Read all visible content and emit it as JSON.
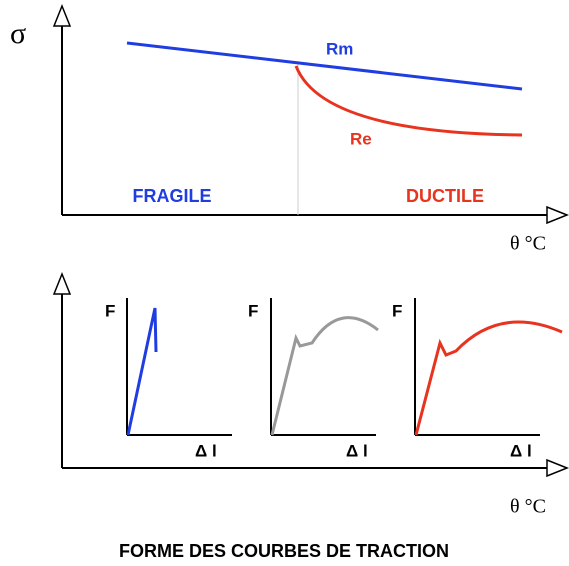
{
  "top_chart": {
    "y_label": "σ",
    "x_label": "θ °C",
    "curves": [
      "Rm",
      "Re"
    ],
    "regions": [
      "FRAGILE",
      "DUCTILE"
    ]
  },
  "bottom_chart": {
    "x_label": "θ °C",
    "panels": [
      {
        "y_label": "F",
        "x_label": "Δ l"
      },
      {
        "y_label": "F",
        "x_label": "Δ l"
      },
      {
        "y_label": "F",
        "x_label": "Δ l"
      }
    ]
  },
  "caption": "FORME DES COURBES DE TRACTION"
}
